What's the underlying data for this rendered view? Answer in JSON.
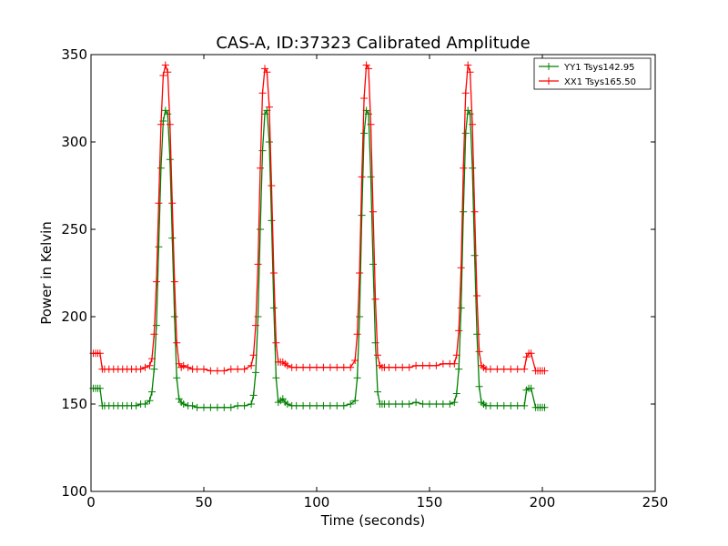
{
  "chart_data": {
    "type": "line",
    "title": "CAS-A, ID:37323 Calibrated Amplitude",
    "xlabel": "Time (seconds)",
    "ylabel": "Power in Kelvin",
    "xlim": [
      0,
      250
    ],
    "ylim": [
      100,
      350
    ],
    "xticks": [
      0,
      50,
      100,
      150,
      200,
      250
    ],
    "yticks": [
      100,
      150,
      200,
      250,
      300,
      350
    ],
    "grid": false,
    "legend_position": "top-right",
    "series": [
      {
        "name": "YY1 Tsys142.95",
        "color": "#008000",
        "x": [
          1,
          2,
          3,
          4,
          5,
          6,
          8,
          10,
          12,
          14,
          16,
          18,
          20,
          22,
          24,
          26,
          27,
          28,
          29,
          30,
          31,
          32,
          33,
          34,
          35,
          36,
          37,
          38,
          39,
          40,
          41,
          43,
          45,
          47,
          50,
          53,
          56,
          59,
          62,
          65,
          68,
          71,
          72,
          73,
          74,
          75,
          76,
          77,
          78,
          79,
          80,
          81,
          82,
          83,
          84,
          85,
          86,
          87,
          89,
          91,
          94,
          97,
          100,
          103,
          106,
          109,
          112,
          115,
          117,
          118,
          119,
          120,
          121,
          122,
          123,
          124,
          125,
          126,
          127,
          128,
          129,
          130,
          132,
          135,
          138,
          141,
          144,
          147,
          150,
          153,
          156,
          159,
          161,
          162,
          163,
          164,
          165,
          166,
          167,
          168,
          169,
          170,
          171,
          172,
          173,
          174,
          175,
          177,
          180,
          183,
          186,
          189,
          192,
          193,
          194,
          195,
          197,
          198,
          199,
          200,
          201
        ],
        "values": [
          159,
          159,
          159,
          159,
          149,
          149,
          149,
          149,
          149,
          149,
          149,
          149,
          149,
          150,
          150,
          152,
          157,
          170,
          195,
          240,
          285,
          312,
          318,
          316,
          290,
          245,
          200,
          165,
          153,
          151,
          150,
          149,
          149,
          148,
          148,
          148,
          148,
          148,
          148,
          149,
          149,
          150,
          155,
          168,
          200,
          250,
          295,
          316,
          318,
          300,
          255,
          205,
          165,
          151,
          152,
          153,
          151,
          150,
          149,
          149,
          149,
          149,
          149,
          149,
          149,
          149,
          149,
          150,
          152,
          165,
          200,
          258,
          305,
          318,
          316,
          280,
          230,
          185,
          157,
          150,
          150,
          150,
          150,
          150,
          150,
          150,
          151,
          150,
          150,
          150,
          150,
          150,
          151,
          156,
          170,
          205,
          260,
          305,
          318,
          316,
          285,
          235,
          190,
          160,
          151,
          150,
          149,
          149,
          149,
          149,
          149,
          149,
          149,
          158,
          159,
          159,
          148,
          148,
          148,
          148,
          148
        ]
      },
      {
        "name": "XX1 Tsys165.50",
        "color": "#ff0000",
        "x": [
          1,
          2,
          3,
          4,
          5,
          6,
          8,
          10,
          12,
          14,
          16,
          18,
          20,
          22,
          24,
          26,
          27,
          28,
          29,
          30,
          31,
          32,
          33,
          34,
          35,
          36,
          37,
          38,
          39,
          40,
          41,
          43,
          45,
          47,
          50,
          53,
          56,
          59,
          62,
          65,
          68,
          71,
          72,
          73,
          74,
          75,
          76,
          77,
          78,
          79,
          80,
          81,
          82,
          83,
          84,
          85,
          86,
          87,
          89,
          91,
          94,
          97,
          100,
          103,
          106,
          109,
          112,
          115,
          117,
          118,
          119,
          120,
          121,
          122,
          123,
          124,
          125,
          126,
          127,
          128,
          129,
          130,
          132,
          135,
          138,
          141,
          144,
          147,
          150,
          153,
          156,
          159,
          161,
          162,
          163,
          164,
          165,
          166,
          167,
          168,
          169,
          170,
          171,
          172,
          173,
          174,
          175,
          177,
          180,
          183,
          186,
          189,
          192,
          193,
          194,
          195,
          197,
          198,
          199,
          200,
          201
        ],
        "values": [
          179,
          179,
          179,
          179,
          170,
          170,
          170,
          170,
          170,
          170,
          170,
          170,
          170,
          170,
          171,
          172,
          176,
          190,
          220,
          265,
          310,
          338,
          344,
          340,
          310,
          265,
          220,
          185,
          173,
          171,
          172,
          171,
          170,
          170,
          170,
          169,
          169,
          169,
          170,
          170,
          170,
          172,
          178,
          195,
          230,
          285,
          328,
          342,
          340,
          320,
          275,
          225,
          185,
          174,
          174,
          174,
          173,
          172,
          171,
          171,
          171,
          171,
          171,
          171,
          171,
          171,
          171,
          171,
          175,
          190,
          225,
          280,
          325,
          344,
          342,
          310,
          260,
          210,
          178,
          172,
          171,
          171,
          171,
          171,
          171,
          171,
          172,
          172,
          172,
          172,
          173,
          173,
          173,
          178,
          192,
          228,
          285,
          328,
          344,
          340,
          310,
          260,
          212,
          180,
          172,
          171,
          170,
          170,
          170,
          170,
          170,
          170,
          170,
          177,
          179,
          179,
          169,
          169,
          169,
          169,
          169
        ]
      }
    ]
  }
}
